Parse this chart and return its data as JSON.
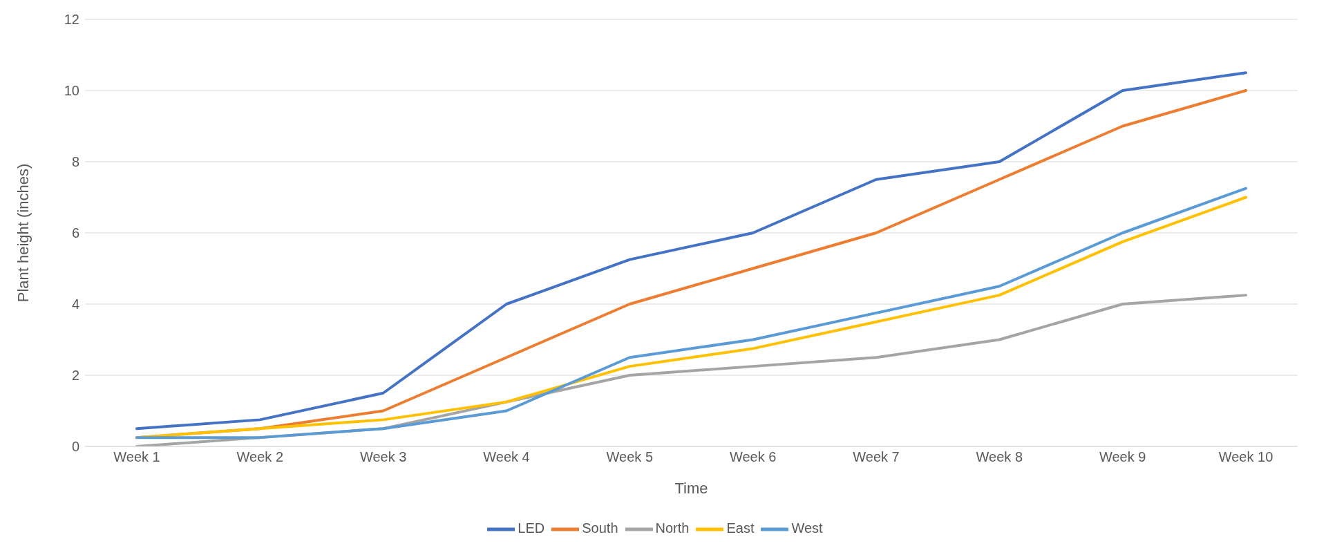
{
  "chart_data": {
    "type": "line",
    "xlabel": "Time",
    "ylabel": "Plant height (inches)",
    "categories": [
      "Week 1",
      "Week 2",
      "Week 3",
      "Week 4",
      "Week 5",
      "Week 6",
      "Week 7",
      "Week 8",
      "Week 9",
      "Week 10"
    ],
    "series": [
      {
        "name": "LED",
        "color": "#4472c4",
        "values": [
          0.5,
          0.75,
          1.5,
          4,
          5.25,
          6,
          7.5,
          8,
          10,
          10.5
        ]
      },
      {
        "name": "South",
        "color": "#ed7d31",
        "values": [
          0.25,
          0.5,
          1,
          2.5,
          4,
          5,
          6,
          7.5,
          9,
          10
        ]
      },
      {
        "name": "North",
        "color": "#a5a5a5",
        "values": [
          0,
          0.25,
          0.5,
          1.25,
          2,
          2.25,
          2.5,
          3,
          4,
          4.25
        ]
      },
      {
        "name": "East",
        "color": "#ffc000",
        "values": [
          0.25,
          0.5,
          0.75,
          1.25,
          2.25,
          2.75,
          3.5,
          4.25,
          5.75,
          7
        ]
      },
      {
        "name": "West",
        "color": "#5b9bd5",
        "values": [
          0.25,
          0.25,
          0.5,
          1,
          2.5,
          3,
          3.75,
          4.5,
          6,
          7.25
        ]
      }
    ],
    "ylim": [
      0,
      12
    ],
    "yticks": [
      0,
      2,
      4,
      6,
      8,
      10,
      12
    ],
    "grid": "y",
    "legend": "bottom"
  }
}
